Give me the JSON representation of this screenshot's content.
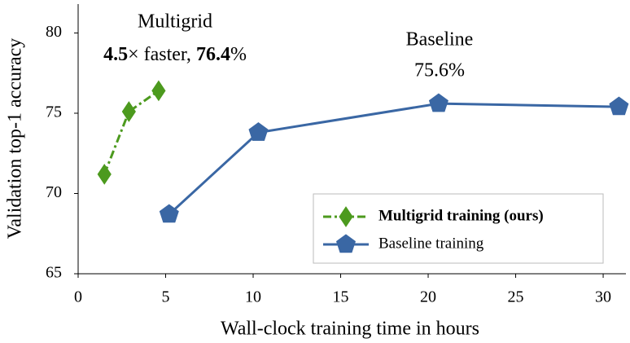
{
  "chart_data": {
    "type": "line",
    "xlabel": "Wall-clock training time in hours",
    "ylabel": "Validation top-1 accuracy",
    "xlim": [
      0,
      31.3
    ],
    "ylim": [
      65,
      81.8
    ],
    "xticks": [
      0,
      5,
      10,
      15,
      20,
      25,
      30
    ],
    "yticks": [
      65,
      70,
      75,
      80
    ],
    "legend": "lower right",
    "series": [
      {
        "name": "Multigrid training (ours)",
        "color": "#4c9a1e",
        "marker": "diamond",
        "linestyle": "dashdot",
        "x": [
          1.5,
          2.9,
          4.6
        ],
        "values": [
          71.2,
          75.1,
          76.4
        ]
      },
      {
        "name": "Baseline training",
        "color": "#3a67a4",
        "marker": "pentagon",
        "linestyle": "solid",
        "x": [
          5.2,
          10.3,
          20.6,
          30.9
        ],
        "values": [
          68.7,
          73.8,
          75.6,
          75.4
        ]
      }
    ],
    "annotations": [
      {
        "lines": [
          "Multigrid"
        ],
        "parts": [
          "4.5",
          "× faster, ",
          "76.4",
          "%"
        ]
      },
      {
        "lines": [
          "Baseline",
          "75.6%"
        ]
      }
    ]
  }
}
